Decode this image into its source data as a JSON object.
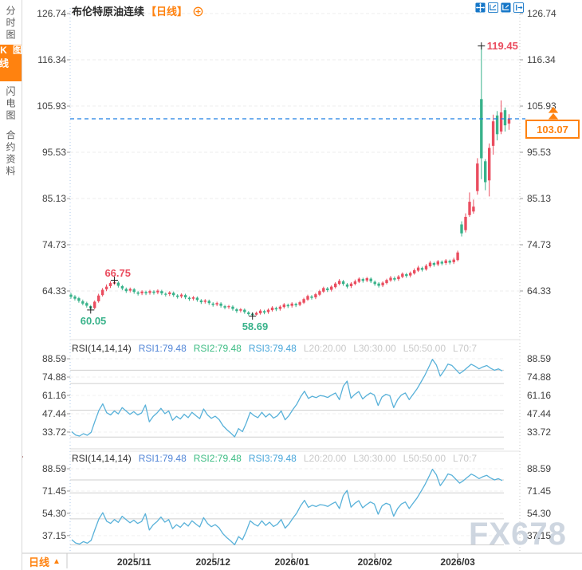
{
  "header": {
    "title": "布伦特原油连续",
    "period": "【日线】"
  },
  "sidebar": {
    "items": [
      {
        "label": "分时图",
        "name": "time-share-chart",
        "active": false
      },
      {
        "label": "K线图",
        "name": "kline-chart",
        "active": true
      },
      {
        "label": "闪电图",
        "name": "flash-chart",
        "active": false
      },
      {
        "label": "合约资料",
        "name": "contract-info",
        "active": false
      }
    ]
  },
  "toolbar": {
    "icons": [
      "pan-icon",
      "fit-x-axis-icon",
      "fit-y-axis-icon",
      "exit-chart-icon"
    ]
  },
  "icons": {
    "header_plus": "circle-plus-icon",
    "gutter": "sun-burst-icon",
    "price_tag_arrow": "up-arrow-icon"
  },
  "price_tag": {
    "value": "103.07"
  },
  "bottom_bar": {
    "period_label": "日线",
    "arrow": "▲"
  },
  "watermark": "FX678",
  "colors": {
    "up": "#ea4d5f",
    "down": "#38b28a",
    "accent": "#ff820f",
    "current_line": "#1f7fe4",
    "rsi_line": "#58b1d9",
    "rsi1": "#5286d7",
    "rsi2": "#3cbc83",
    "rsi3": "#48a6da",
    "muted": "#c9c9c9",
    "axis_text": "#404040",
    "grid": "#cfcfcf",
    "grid_dash": "#ededed",
    "toolbar_blue": "#1677c8",
    "marker": "#222222"
  },
  "chart_data": {
    "type": "candlestick+rsi",
    "main": {
      "title": "布伦特原油连续【日线】",
      "y_ticks": [
        126.74,
        116.34,
        105.93,
        95.53,
        85.13,
        74.73,
        64.33
      ],
      "current_price": 103.07,
      "x_ticks": [
        {
          "index": 16,
          "label": "2025/11"
        },
        {
          "index": 36,
          "label": "2025/12"
        },
        {
          "index": 56,
          "label": "2026/01"
        },
        {
          "index": 77,
          "label": "2026/02"
        },
        {
          "index": 98,
          "label": "2026/03"
        }
      ],
      "annotations": [
        {
          "index": 104,
          "price": 119.45,
          "label": "119.45",
          "kind": "high",
          "placement": "right"
        },
        {
          "index": 11,
          "price": 66.75,
          "label": "66.75",
          "kind": "high",
          "placement": "above"
        },
        {
          "index": 5,
          "price": 60.05,
          "label": "60.05",
          "kind": "low",
          "placement": "below"
        },
        {
          "index": 46,
          "price": 58.69,
          "label": "58.69",
          "kind": "low",
          "placement": "below"
        }
      ],
      "candles": [
        [
          63.5,
          63.0,
          62.6,
          63.9
        ],
        [
          63.1,
          62.6,
          62.2,
          63.4
        ],
        [
          62.7,
          62.1,
          61.7,
          63.0
        ],
        [
          62.0,
          61.5,
          61.1,
          62.4
        ],
        [
          61.6,
          61.0,
          60.6,
          61.9
        ],
        [
          60.9,
          60.4,
          60.05,
          61.2
        ],
        [
          60.5,
          61.9,
          60.2,
          62.2
        ],
        [
          62.0,
          63.3,
          61.7,
          63.7
        ],
        [
          63.4,
          64.6,
          63.1,
          65.0
        ],
        [
          64.7,
          65.3,
          64.3,
          65.8
        ],
        [
          65.4,
          66.1,
          65.0,
          66.5
        ],
        [
          66.0,
          66.3,
          65.7,
          66.75
        ],
        [
          66.2,
          65.5,
          65.1,
          66.5
        ],
        [
          65.4,
          64.9,
          64.5,
          65.7
        ],
        [
          64.8,
          64.3,
          63.9,
          65.1
        ],
        [
          64.4,
          64.8,
          64.0,
          65.1
        ],
        [
          64.7,
          64.1,
          63.7,
          65.0
        ],
        [
          64.0,
          63.7,
          63.3,
          64.3
        ],
        [
          63.8,
          64.2,
          63.4,
          64.5
        ],
        [
          64.1,
          63.8,
          63.4,
          64.4
        ],
        [
          63.9,
          64.3,
          63.5,
          64.6
        ],
        [
          64.2,
          63.9,
          63.5,
          64.5
        ],
        [
          64.0,
          64.4,
          63.6,
          64.7
        ],
        [
          64.3,
          63.8,
          63.4,
          64.6
        ],
        [
          63.7,
          63.5,
          63.1,
          64.0
        ],
        [
          63.6,
          64.0,
          63.2,
          64.3
        ],
        [
          63.9,
          63.4,
          63.0,
          64.2
        ],
        [
          63.3,
          63.0,
          62.6,
          63.6
        ],
        [
          63.1,
          63.5,
          62.7,
          63.8
        ],
        [
          63.4,
          62.9,
          62.5,
          63.7
        ],
        [
          62.8,
          62.5,
          62.1,
          63.1
        ],
        [
          62.6,
          62.9,
          62.2,
          63.2
        ],
        [
          62.8,
          62.3,
          61.9,
          63.1
        ],
        [
          62.2,
          61.8,
          61.4,
          62.5
        ],
        [
          61.9,
          62.2,
          61.5,
          62.5
        ],
        [
          62.1,
          61.6,
          61.2,
          62.4
        ],
        [
          61.5,
          61.2,
          60.8,
          61.8
        ],
        [
          61.3,
          61.6,
          60.9,
          61.9
        ],
        [
          61.5,
          61.0,
          60.6,
          61.8
        ],
        [
          60.9,
          60.6,
          60.2,
          61.2
        ],
        [
          60.7,
          60.9,
          60.3,
          61.2
        ],
        [
          60.8,
          60.3,
          59.9,
          61.1
        ],
        [
          60.2,
          59.8,
          59.4,
          60.5
        ],
        [
          59.9,
          60.2,
          59.5,
          60.5
        ],
        [
          60.1,
          59.6,
          59.2,
          60.4
        ],
        [
          59.5,
          59.1,
          58.8,
          59.8
        ],
        [
          59.2,
          58.9,
          58.69,
          59.5
        ],
        [
          59.0,
          59.4,
          58.8,
          59.7
        ],
        [
          59.3,
          59.9,
          59.0,
          60.2
        ],
        [
          59.8,
          59.5,
          59.1,
          60.1
        ],
        [
          59.6,
          60.1,
          59.2,
          60.4
        ],
        [
          60.0,
          60.6,
          59.7,
          60.9
        ],
        [
          60.5,
          60.2,
          59.8,
          60.8
        ],
        [
          60.3,
          60.8,
          59.9,
          61.1
        ],
        [
          60.7,
          61.3,
          60.4,
          61.6
        ],
        [
          61.2,
          60.9,
          60.5,
          61.5
        ],
        [
          61.0,
          61.5,
          60.6,
          61.8
        ],
        [
          61.4,
          61.1,
          60.7,
          61.7
        ],
        [
          61.2,
          61.8,
          60.9,
          62.1
        ],
        [
          61.7,
          62.5,
          61.4,
          62.8
        ],
        [
          62.4,
          63.2,
          62.1,
          63.5
        ],
        [
          63.1,
          62.8,
          62.4,
          63.4
        ],
        [
          62.9,
          63.6,
          62.5,
          63.9
        ],
        [
          63.5,
          64.3,
          63.2,
          64.6
        ],
        [
          64.2,
          65.0,
          63.9,
          65.3
        ],
        [
          64.9,
          64.5,
          64.1,
          65.2
        ],
        [
          64.6,
          65.3,
          64.2,
          65.6
        ],
        [
          65.2,
          66.0,
          64.9,
          66.3
        ],
        [
          65.9,
          66.6,
          65.6,
          67.0
        ],
        [
          66.5,
          65.9,
          65.5,
          66.8
        ],
        [
          65.8,
          65.3,
          64.9,
          66.1
        ],
        [
          65.4,
          66.0,
          65.0,
          66.3
        ],
        [
          65.9,
          66.5,
          65.6,
          66.9
        ],
        [
          66.4,
          67.1,
          66.1,
          67.4
        ],
        [
          67.0,
          66.6,
          66.2,
          67.3
        ],
        [
          66.7,
          67.2,
          66.3,
          67.5
        ],
        [
          67.1,
          66.5,
          66.1,
          67.4
        ],
        [
          66.4,
          65.9,
          65.5,
          66.7
        ],
        [
          66.0,
          65.5,
          65.1,
          66.3
        ],
        [
          65.6,
          66.2,
          65.2,
          66.5
        ],
        [
          66.1,
          66.8,
          65.8,
          67.1
        ],
        [
          66.7,
          67.3,
          66.4,
          67.7
        ],
        [
          67.2,
          66.9,
          66.5,
          67.6
        ],
        [
          67.0,
          67.6,
          66.6,
          67.9
        ],
        [
          67.5,
          68.2,
          67.2,
          68.5
        ],
        [
          68.1,
          67.7,
          67.3,
          68.4
        ],
        [
          67.8,
          68.4,
          67.4,
          68.7
        ],
        [
          68.3,
          69.0,
          68.0,
          69.4
        ],
        [
          68.9,
          69.6,
          68.6,
          70.0
        ],
        [
          69.5,
          69.1,
          68.7,
          69.8
        ],
        [
          69.2,
          70.0,
          68.9,
          70.4
        ],
        [
          69.9,
          70.7,
          69.6,
          71.1
        ],
        [
          70.6,
          70.2,
          69.8,
          70.9
        ],
        [
          70.3,
          71.0,
          69.9,
          71.3
        ],
        [
          70.9,
          70.5,
          70.1,
          71.2
        ],
        [
          70.6,
          71.2,
          70.2,
          71.5
        ],
        [
          71.1,
          70.7,
          70.3,
          71.4
        ],
        [
          70.8,
          71.4,
          70.4,
          71.8
        ],
        [
          71.3,
          73.0,
          71.0,
          73.4
        ],
        [
          79.3,
          77.3,
          76.6,
          80.0
        ],
        [
          78.0,
          81.0,
          77.5,
          81.8
        ],
        [
          81.4,
          84.4,
          81.0,
          86.5
        ],
        [
          82.2,
          83.3,
          81.7,
          84.9
        ],
        [
          86.8,
          93.0,
          86.0,
          94.2
        ],
        [
          107.5,
          94.2,
          89.5,
          119.45
        ],
        [
          93.5,
          88.8,
          87.0,
          94.0
        ],
        [
          89.2,
          96.5,
          85.6,
          97.5
        ],
        [
          97.0,
          102.5,
          95.0,
          104.0
        ],
        [
          103.8,
          99.6,
          98.2,
          104.8
        ],
        [
          100.2,
          104.5,
          99.6,
          107.2
        ],
        [
          105.0,
          101.6,
          100.2,
          105.6
        ],
        [
          102.0,
          103.07,
          100.6,
          104.1
        ]
      ]
    },
    "rsi_panels": [
      {
        "header": {
          "name": "RSI(14,14,14)",
          "items": [
            {
              "text": "RSI1:79.48",
              "color": "rsi1"
            },
            {
              "text": "RSI2:79.48",
              "color": "rsi2"
            },
            {
              "text": "RSI3:79.48",
              "color": "rsi3"
            },
            {
              "text": "L20:20.00",
              "color": "muted"
            },
            {
              "text": "L30:30.00",
              "color": "muted"
            },
            {
              "text": "L50:50.00",
              "color": "muted"
            },
            {
              "text": "L70:7",
              "color": "muted"
            }
          ]
        },
        "y_ticks": [
          88.59,
          74.88,
          61.16,
          47.44,
          33.72
        ],
        "grid_levels": [
          80,
          70,
          50,
          30,
          20
        ]
      },
      {
        "header": {
          "name": "RSI(14,14,14)",
          "items": [
            {
              "text": "RSI1:79.48",
              "color": "rsi1"
            },
            {
              "text": "RSI2:79.48",
              "color": "rsi2"
            },
            {
              "text": "RSI3:79.48",
              "color": "rsi3"
            },
            {
              "text": "L20:20.00",
              "color": "muted"
            },
            {
              "text": "L30:30.00",
              "color": "muted"
            },
            {
              "text": "L50:50.00",
              "color": "muted"
            },
            {
              "text": "L70:7",
              "color": "muted"
            }
          ]
        },
        "y_ticks": [
          88.59,
          71.45,
          54.3,
          37.15
        ],
        "grid_levels": [
          80,
          70,
          50,
          30,
          20
        ]
      }
    ],
    "rsi_values": [
      34,
      31.5,
      30.7,
      32.5,
      31.3,
      33.5,
      42,
      50,
      54.8,
      48.2,
      46.5,
      49.5,
      47.3,
      52,
      49.5,
      47,
      49,
      46.5,
      48,
      54,
      41.4,
      45.5,
      48,
      51.5,
      47.5,
      49.5,
      42.5,
      45.5,
      43.5,
      47,
      44.5,
      48.5,
      46,
      43.8,
      51,
      46.5,
      44,
      45.6,
      43,
      38.5,
      35.5,
      33,
      30.1,
      36.3,
      34,
      40.5,
      48.5,
      46,
      44.5,
      48.5,
      45,
      47.5,
      44.2,
      45.8,
      49.5,
      42.9,
      46,
      50.5,
      54.5,
      60,
      64.3,
      58.9,
      60.5,
      59.5,
      61,
      60.6,
      59.6,
      61.5,
      63,
      58,
      68,
      71.9,
      59,
      62,
      64,
      58.5,
      61,
      63,
      61.5,
      53.6,
      60,
      62,
      61,
      52,
      58,
      61.5,
      63,
      58,
      62,
      66,
      71,
      76,
      82,
      88.2,
      84,
      75.6,
      79.6,
      84.6,
      83.6,
      80.6,
      77.5,
      79.5,
      82,
      84.5,
      83,
      81,
      82.5,
      83.5,
      81.5,
      80,
      81,
      79.48
    ]
  }
}
